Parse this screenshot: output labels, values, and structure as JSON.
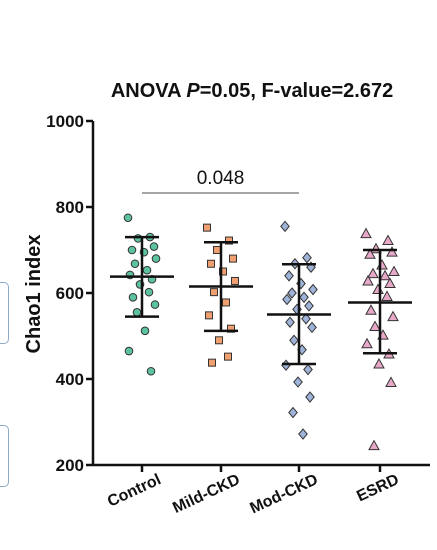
{
  "chart_data": {
    "type": "scatter",
    "title_prefix": "ANOVA ",
    "title_p": "P",
    "title_suffix": "=0.05, F-value=2.672",
    "xlabel": "",
    "ylabel": "Chao1 index",
    "ylim": [
      200,
      1000
    ],
    "yticks": [
      "200",
      "400",
      "600",
      "800",
      "1000"
    ],
    "ytick_values": [
      200,
      400,
      600,
      800,
      1000
    ],
    "categories": [
      "Control",
      "Mild-CKD",
      "Mod-CKD",
      "ESRD"
    ],
    "grid": false,
    "legend": "none",
    "significance": {
      "from": "Control",
      "to": "Mod-CKD",
      "label": "0.048"
    },
    "series": [
      {
        "category": "Control",
        "marker": "circle",
        "color": "#5cc2a0",
        "mean": 638,
        "sd_low": 545,
        "sd_high": 730,
        "points": [
          775,
          730,
          727,
          708,
          700,
          695,
          680,
          668,
          653,
          642,
          632,
          620,
          602,
          590,
          573,
          555,
          512,
          465,
          418
        ]
      },
      {
        "category": "Mild-CKD",
        "marker": "square",
        "color": "#f0a070",
        "mean": 615,
        "sd_low": 512,
        "sd_high": 718,
        "points": [
          752,
          722,
          700,
          680,
          668,
          650,
          628,
          602,
          578,
          548,
          517,
          490,
          452,
          438
        ]
      },
      {
        "category": "Mod-CKD",
        "marker": "diamond",
        "color": "#9fb3d8",
        "mean": 550,
        "sd_low": 435,
        "sd_high": 667,
        "points": [
          755,
          682,
          668,
          660,
          640,
          622,
          608,
          600,
          590,
          585,
          570,
          562,
          540,
          532,
          520,
          490,
          468,
          432,
          422,
          393,
          358,
          322,
          272
        ]
      },
      {
        "category": "ESRD",
        "marker": "triangle",
        "color": "#e8a8c8",
        "mean": 578,
        "sd_low": 460,
        "sd_high": 700,
        "points": [
          738,
          722,
          703,
          695,
          690,
          665,
          650,
          645,
          640,
          628,
          622,
          608,
          592,
          560,
          545,
          522,
          502,
          482,
          458,
          435,
          392,
          245
        ]
      }
    ]
  }
}
